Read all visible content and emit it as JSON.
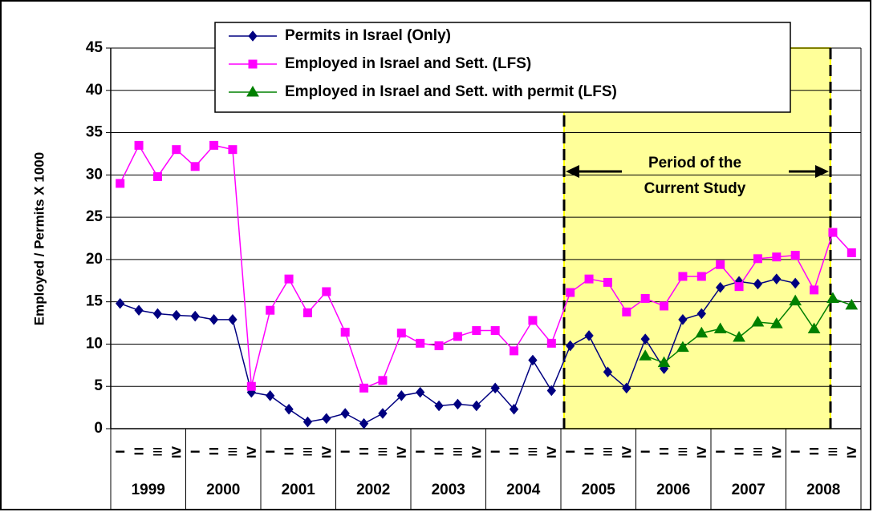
{
  "chart_data": {
    "type": "line",
    "y_label": "Employed / Permits X 1000",
    "annotation": [
      "Period of the",
      "Current Study"
    ],
    "categories": [
      "−",
      "=",
      "≡",
      "≥",
      "−",
      "=",
      "≡",
      "≥",
      "−",
      "=",
      "≡",
      "≥",
      "−",
      "=",
      "≡",
      "≥",
      "−",
      "=",
      "≡",
      "≥",
      "−",
      "=",
      "≡",
      "≥",
      "−",
      "=",
      "≡",
      "≥",
      "−",
      "=",
      "≡",
      "≥",
      "−",
      "=",
      "≡",
      "≥",
      "−",
      "=",
      "≡",
      "≥"
    ],
    "years": [
      "1999",
      "2000",
      "2001",
      "2002",
      "2003",
      "2004",
      "2005",
      "2006",
      "2007",
      "2008"
    ],
    "series": [
      {
        "name": "Permits in Israel (Only)",
        "color": "#000080",
        "marker": "diamond",
        "values": [
          14.8,
          14.0,
          13.6,
          13.4,
          13.3,
          12.9,
          12.9,
          4.3,
          3.9,
          2.3,
          0.8,
          1.2,
          1.8,
          0.6,
          1.8,
          3.9,
          4.3,
          2.7,
          2.9,
          2.7,
          4.8,
          2.3,
          8.1,
          4.5,
          9.8,
          11.0,
          6.7,
          4.8,
          10.6,
          7.1,
          12.9,
          13.6,
          16.7,
          17.4,
          17.1,
          17.7,
          17.2,
          null,
          null,
          null
        ]
      },
      {
        "name": "Employed in Israel and Sett. (LFS)",
        "color": "#ff00ff",
        "marker": "square",
        "values": [
          29.0,
          33.5,
          29.8,
          33.0,
          31.0,
          33.5,
          33.0,
          5.0,
          14.0,
          17.7,
          13.7,
          16.2,
          11.4,
          4.8,
          5.7,
          11.3,
          10.1,
          9.8,
          10.9,
          11.6,
          11.6,
          9.2,
          12.8,
          10.1,
          16.1,
          17.7,
          17.3,
          13.8,
          15.4,
          14.5,
          18.0,
          18.0,
          19.4,
          16.8,
          20.1,
          20.3,
          20.5,
          16.4,
          23.2,
          20.8
        ]
      },
      {
        "name": "Employed in Israel and Sett. with permit (LFS)",
        "color": "#008000",
        "marker": "triangle",
        "values": [
          null,
          null,
          null,
          null,
          null,
          null,
          null,
          null,
          null,
          null,
          null,
          null,
          null,
          null,
          null,
          null,
          null,
          null,
          null,
          null,
          null,
          null,
          null,
          null,
          null,
          null,
          null,
          null,
          8.6,
          7.8,
          9.6,
          11.3,
          11.8,
          10.8,
          12.6,
          12.4,
          15.1,
          11.8,
          15.4,
          14.6
        ]
      }
    ],
    "ylim": [
      0,
      45
    ],
    "yticks": [
      0,
      5,
      10,
      15,
      20,
      25,
      30,
      35,
      40,
      45
    ],
    "grid": true
  }
}
